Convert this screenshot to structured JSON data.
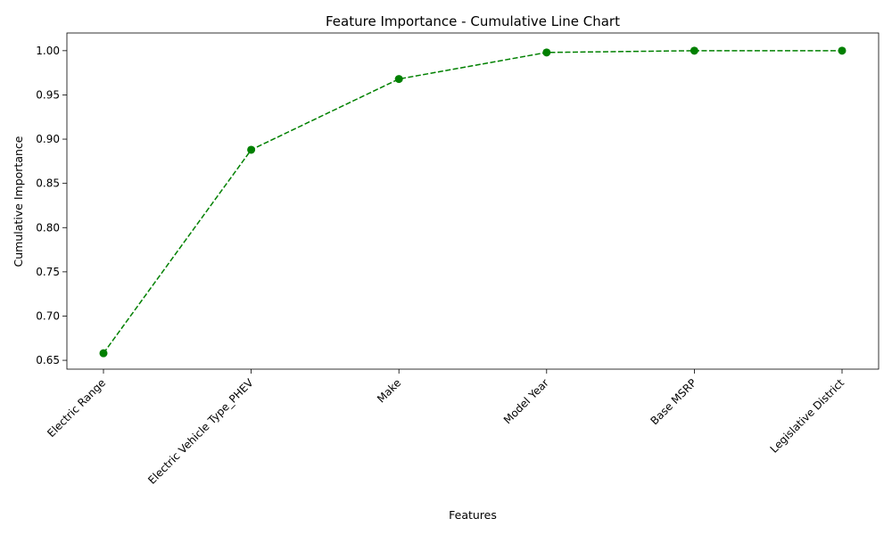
{
  "chart_data": {
    "type": "line",
    "title": "Feature Importance - Cumulative Line Chart",
    "xlabel": "Features",
    "ylabel": "Cumulative Importance",
    "categories": [
      "Electric Range",
      "Electric Vehicle Type_PHEV",
      "Make",
      "Model Year",
      "Base MSRP",
      "Legislative District"
    ],
    "values": [
      0.658,
      0.888,
      0.968,
      0.998,
      1.0,
      1.0
    ],
    "ylim": [
      0.64,
      1.02
    ],
    "yticks": [
      "0.65",
      "0.70",
      "0.75",
      "0.80",
      "0.85",
      "0.90",
      "0.95",
      "1.00"
    ],
    "grid": false,
    "line_style": "dashed",
    "marker": "circle",
    "color": "#008000"
  }
}
